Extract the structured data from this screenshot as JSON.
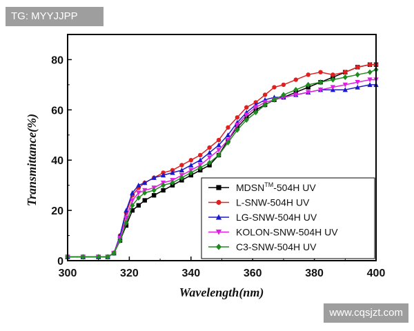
{
  "watermarks": {
    "top_left": "TG: MYYJJPP",
    "bottom_right": "www.cqsjzt.com"
  },
  "chart_data": {
    "type": "line",
    "title": "",
    "xlabel": "Wavelength(nm)",
    "ylabel": "Transmittance(%)",
    "xlim": [
      300,
      400
    ],
    "ylim": [
      0,
      90
    ],
    "x_ticks": [
      300,
      320,
      340,
      360,
      380,
      400
    ],
    "y_ticks": [
      0,
      20,
      40,
      60,
      80
    ],
    "grid": false,
    "legend_position": "bottom-right",
    "x": [
      300,
      305,
      310,
      313,
      315,
      317,
      319,
      321,
      323,
      325,
      328,
      331,
      334,
      337,
      340,
      343,
      346,
      349,
      352,
      355,
      358,
      361,
      364,
      367,
      370,
      374,
      378,
      382,
      386,
      390,
      394,
      398,
      400
    ],
    "series": [
      {
        "name": "MDSN™-504H UV",
        "legend_parts": [
          "MDSN",
          "TM",
          "-504H UV"
        ],
        "color": "#000000",
        "marker": "square",
        "values": [
          1.5,
          1.5,
          1.5,
          1.5,
          3,
          8,
          14,
          20,
          22,
          24,
          26,
          28,
          30,
          32,
          34,
          36,
          38,
          42,
          48,
          53,
          57,
          60,
          62,
          64,
          65,
          67,
          69,
          71,
          73,
          75,
          77,
          78,
          78
        ]
      },
      {
        "name": "L-SNW-504H UV",
        "legend_parts": [
          "L-SNW-504H UV"
        ],
        "color": "#e02020",
        "marker": "circle",
        "values": [
          1.5,
          1.5,
          1.5,
          1.5,
          3,
          10,
          19,
          26,
          29,
          31,
          33,
          35,
          36,
          38,
          40,
          42,
          45,
          48,
          53,
          57,
          61,
          63,
          66,
          69,
          70,
          72,
          74,
          75,
          74,
          75,
          77,
          78,
          78
        ]
      },
      {
        "name": "LG-SNW-504H UV",
        "legend_parts": [
          "LG-SNW-504H UV"
        ],
        "color": "#1a1acc",
        "marker": "triangle-up",
        "values": [
          1.5,
          1.5,
          1.5,
          1.5,
          3,
          10,
          20,
          27,
          30,
          31,
          33,
          34,
          35,
          36,
          38,
          40,
          43,
          46,
          50,
          55,
          59,
          62,
          64,
          65,
          65,
          66,
          67,
          68,
          68,
          68,
          69,
          70,
          70
        ]
      },
      {
        "name": "KOLON-SNW-504H UV",
        "legend_parts": [
          "KOLON-SNW-504H UV"
        ],
        "color": "#e020e0",
        "marker": "triangle-down",
        "values": [
          1.5,
          1.5,
          1.5,
          1.5,
          3,
          9,
          17,
          24,
          27,
          28,
          29,
          31,
          32,
          34,
          36,
          38,
          41,
          44,
          48,
          54,
          58,
          61,
          63,
          64,
          65,
          66,
          67,
          68,
          69,
          70,
          71,
          72,
          72
        ]
      },
      {
        "name": "C3-SNW-504H UV",
        "legend_parts": [
          "C3-SNW-504H UV"
        ],
        "color": "#1f8a1f",
        "marker": "diamond",
        "values": [
          1.5,
          1.5,
          1.5,
          1.5,
          3,
          8,
          15,
          22,
          25,
          27,
          28,
          30,
          31,
          33,
          35,
          37,
          39,
          42,
          47,
          52,
          56,
          59,
          62,
          64,
          66,
          68,
          70,
          71,
          72,
          73,
          74,
          75,
          76
        ]
      }
    ]
  }
}
